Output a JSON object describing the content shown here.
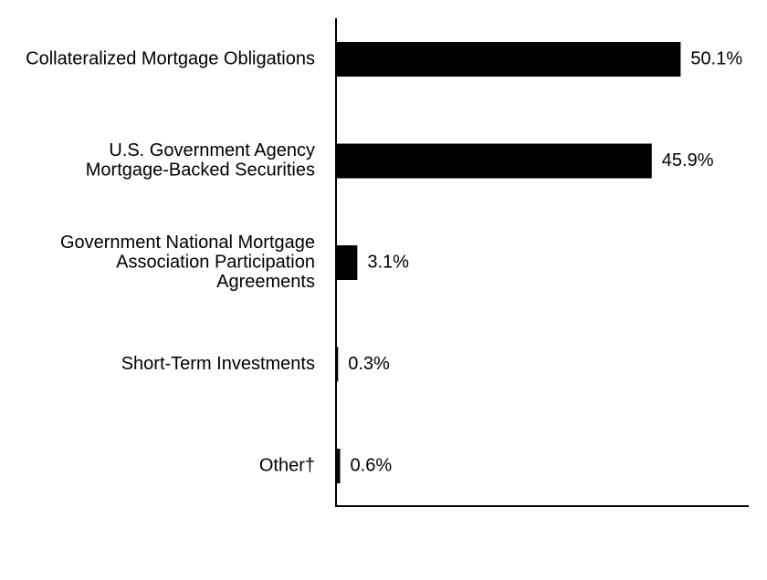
{
  "chart_data": {
    "type": "hbar",
    "categories": [
      [
        "Collateralized Mortgage Obligations"
      ],
      [
        "U.S. Government Agency",
        "Mortgage-Backed Securities"
      ],
      [
        "Government National Mortgage",
        "Association Participation",
        "Agreements"
      ],
      [
        "Short-Term Investments"
      ],
      [
        "Other†"
      ]
    ],
    "values": [
      50.1,
      45.9,
      3.1,
      0.3,
      0.6
    ],
    "value_labels": [
      "50.1%",
      "45.9%",
      "3.1%",
      "0.3%",
      "0.6%"
    ],
    "color": "#000000",
    "xlim": [
      0,
      60
    ]
  }
}
